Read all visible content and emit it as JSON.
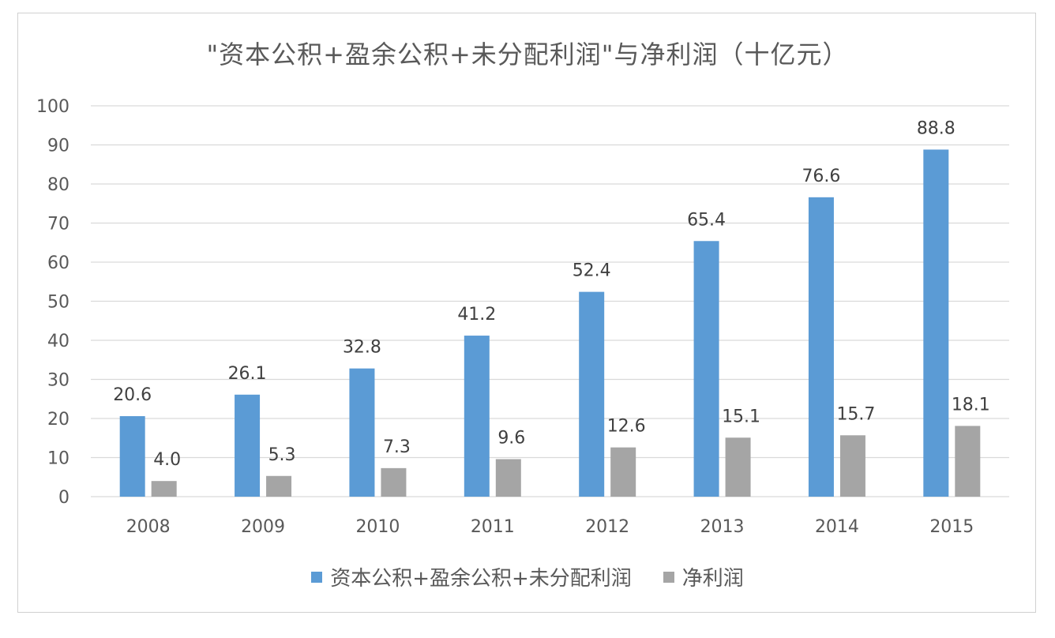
{
  "colors": {
    "series_1": "#5b9bd5",
    "series_2": "#a5a5a5",
    "grid": "#d9d9d9",
    "axis_text": "#595959",
    "label_text": "#404040"
  },
  "chart_data": {
    "type": "bar",
    "title": "\"资本公积+盈余公积+未分配利润\"与净利润（十亿元）",
    "xlabel": "",
    "ylabel": "",
    "categories": [
      "2008",
      "2009",
      "2010",
      "2011",
      "2012",
      "2013",
      "2014",
      "2015"
    ],
    "ylim": [
      0,
      100
    ],
    "yticks": [
      0,
      10,
      20,
      30,
      40,
      50,
      60,
      70,
      80,
      90,
      100
    ],
    "grid": true,
    "legend_position": "bottom",
    "series": [
      {
        "name": "资本公积+盈余公积+未分配利润",
        "values": [
          20.6,
          26.1,
          32.8,
          41.2,
          52.4,
          65.4,
          76.6,
          88.8
        ],
        "labels": [
          "20.6",
          "26.1",
          "32.8",
          "41.2",
          "52.4",
          "65.4",
          "76.6",
          "88.8"
        ]
      },
      {
        "name": "净利润",
        "values": [
          4.0,
          5.3,
          7.3,
          9.6,
          12.6,
          15.1,
          15.7,
          18.1
        ],
        "labels": [
          "4.0",
          "5.3",
          "7.3",
          "9.6",
          "12.6",
          "15.1",
          "15.7",
          "18.1"
        ]
      }
    ]
  }
}
